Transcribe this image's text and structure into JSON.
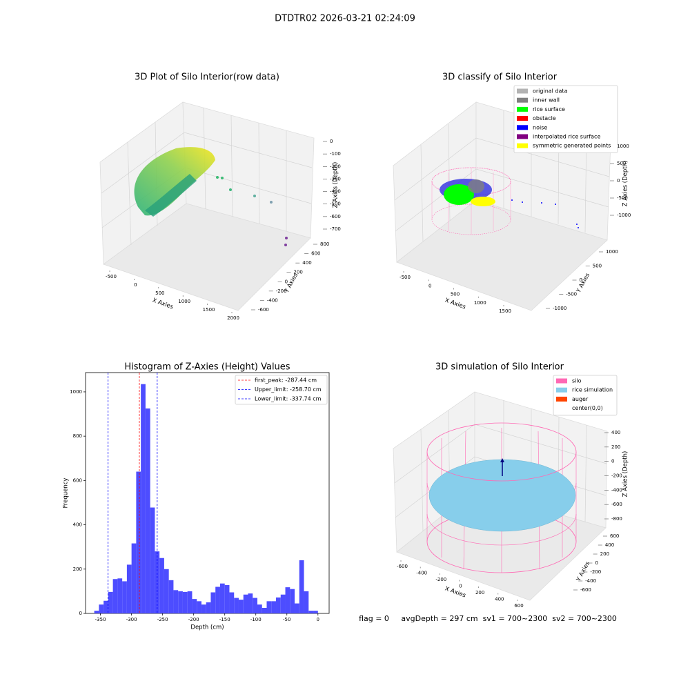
{
  "title": "DTDTR02 2026-03-21 02:24:09",
  "footer": "flag = 0     avgDepth = 297 cm  sv1 = 700~2300  sv2 = 700~2300",
  "chart_data": [
    {
      "type": "scatter3d",
      "title": "3D Plot of Silo Interior(row data)",
      "xlabel": "X Axies",
      "ylabel": "Y Axies",
      "zlabel": "Z Axies (Depth)",
      "xticks": [
        -500,
        0,
        500,
        1000,
        1500,
        2000
      ],
      "yticks": [
        -600,
        -400,
        -200,
        0,
        200,
        400,
        600,
        800
      ],
      "zticks": [
        0,
        -100,
        -200,
        -300,
        -400,
        -500,
        -600,
        -700
      ]
    },
    {
      "type": "scatter3d",
      "title": "3D classify of Silo Interior",
      "xlabel": "X Axies",
      "ylabel": "Y Axies",
      "zlabel": "Z Axies (Depth)",
      "xticks": [
        -500,
        0,
        500,
        1000,
        1500
      ],
      "yticks": [
        -1000,
        -500,
        0,
        500,
        1000
      ],
      "zticks": [
        1000,
        500,
        0,
        -500,
        -1000
      ],
      "legend": [
        {
          "name": "original data",
          "color": "#b3b3b3"
        },
        {
          "name": "inner wall",
          "color": "#808080"
        },
        {
          "name": "rice surface",
          "color": "#00ff00"
        },
        {
          "name": "obstacle",
          "color": "#ff0000"
        },
        {
          "name": "noise",
          "color": "#0000ff"
        },
        {
          "name": "interpolated rice surface",
          "color": "#800080"
        },
        {
          "name": "symmetric generated points",
          "color": "#ffff00"
        }
      ]
    },
    {
      "type": "histogram",
      "title": "Histogram of Z-Axies (Height) Values",
      "xlabel": "Depth (cm)",
      "ylabel": "Frequency",
      "color": "#4d4dff",
      "bins": [
        -360,
        -352.5,
        -345,
        -337.5,
        -330,
        -322.5,
        -315,
        -307.5,
        -300,
        -292.5,
        -285,
        -277.5,
        -270,
        -262.5,
        -255,
        -247.5,
        -240,
        -232.5,
        -225,
        -217.5,
        -210,
        -202.5,
        -195,
        -187.5,
        -180,
        -172.5,
        -165,
        -157.5,
        -150,
        -142.5,
        -135,
        -127.5,
        -120,
        -112.5,
        -105,
        -97.5,
        -90,
        -82.5,
        -75,
        -67.5,
        -60,
        -52.5,
        -45,
        -37.5,
        -30,
        -22.5,
        -15,
        -7.5,
        0
      ],
      "values": [
        12,
        40,
        57,
        97,
        155,
        158,
        145,
        220,
        316,
        640,
        1035,
        925,
        478,
        280,
        250,
        200,
        150,
        105,
        100,
        97,
        100,
        65,
        55,
        40,
        50,
        95,
        120,
        135,
        128,
        95,
        70,
        62,
        85,
        90,
        70,
        40,
        25,
        55,
        55,
        72,
        85,
        118,
        110,
        45,
        240,
        100,
        12,
        12
      ],
      "xlim": [
        -374,
        18
      ],
      "ylim": [
        0,
        1087
      ],
      "xticks": [
        -350,
        -300,
        -250,
        -200,
        -150,
        -100,
        -50,
        0
      ],
      "yticks": [
        0,
        200,
        400,
        600,
        800,
        1000
      ],
      "vlines": [
        {
          "name": "first_peak: -287.44 cm",
          "color": "#ff0000",
          "value": -287.44
        },
        {
          "name": "Upper_limit: -258.70 cm",
          "color": "#0000ff",
          "value": -258.7
        },
        {
          "name": "Lower_limit: -337.74 cm",
          "color": "#0000ff",
          "value": -337.74
        }
      ]
    },
    {
      "type": "surface3d",
      "title": "3D simulation of Silo Interior",
      "xlabel": "X Axies",
      "ylabel": "Y Axies",
      "zlabel": "Z Axies (Depth)",
      "xticks": [
        -600,
        -400,
        -200,
        0,
        200,
        400,
        600
      ],
      "yticks": [
        -600,
        -400,
        -200,
        0,
        200,
        400,
        600
      ],
      "zticks": [
        400,
        200,
        0,
        -200,
        -400,
        -600,
        -800
      ],
      "legend": [
        {
          "name": "silo",
          "color": "#ff69b4"
        },
        {
          "name": "rice simulation",
          "color": "#87ceeb"
        },
        {
          "name": "auger",
          "color": "#ff4500"
        },
        {
          "name": "center(0,0)",
          "color": "#ffffff"
        }
      ]
    }
  ]
}
